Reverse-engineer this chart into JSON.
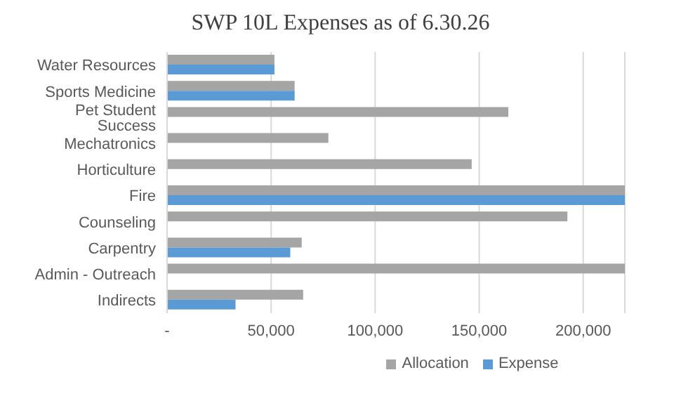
{
  "chart_data": {
    "type": "bar",
    "orientation": "horizontal",
    "title": "SWP 10L Expenses as of  6.30.26",
    "categories": [
      "Water Resources",
      "Sports Medicine",
      "Pet Student Success",
      "Mechatronics",
      "Horticulture",
      "Fire",
      "Counseling",
      "Carpentry",
      "Admin - Outreach",
      "Indirects"
    ],
    "series": [
      {
        "name": "Allocation",
        "color": "#a5a5a5",
        "values": [
          51600,
          61300,
          164000,
          77500,
          146400,
          220000,
          192400,
          64700,
          220000,
          65400
        ]
      },
      {
        "name": "Expense",
        "color": "#5b9bd5",
        "values": [
          51600,
          61300,
          null,
          null,
          null,
          220000,
          null,
          59200,
          null,
          32900
        ]
      }
    ],
    "xlim": [
      0,
      220000
    ],
    "xticks": [
      {
        "value": 0,
        "label": "-"
      },
      {
        "value": 50000,
        "label": "50,000"
      },
      {
        "value": 100000,
        "label": "100,000"
      },
      {
        "value": 150000,
        "label": "150,000"
      },
      {
        "value": 200000,
        "label": "200,000"
      }
    ],
    "grid": "x",
    "legend": "bottom"
  }
}
